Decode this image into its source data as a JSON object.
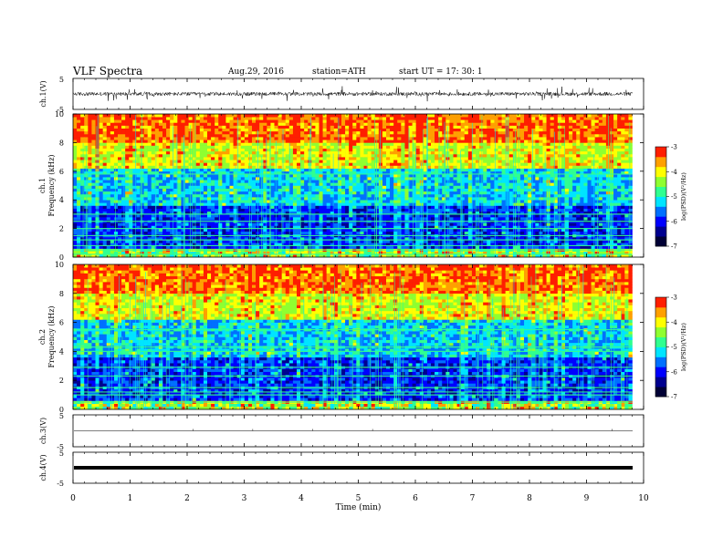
{
  "header": {
    "title": "VLF  Spectra",
    "date": "Aug.29, 2016",
    "station": "station=ATH",
    "start_ut": "start  UT  =    17: 30: 1"
  },
  "chart_data": [
    {
      "type": "line",
      "panel": "ch1-waveform",
      "ylabel": "ch.1(V)",
      "ylim": [
        -5,
        5
      ],
      "yticks": [
        "5",
        "-5"
      ],
      "x_range_min": [
        0,
        9.8
      ],
      "baseline_v": 0,
      "noise_amplitude_v": 1.2
    },
    {
      "type": "heatmap",
      "panel": "ch1-spectrogram",
      "ylabel_channel": "ch.1",
      "ylabel": "Frequency  (kHz)",
      "ylim": [
        0,
        10
      ],
      "yticks": [
        "0",
        "2",
        "4",
        "6",
        "8",
        "10"
      ],
      "colorbar": {
        "label": "log(PSD)(V²/Hz)",
        "ticks": [
          "-3",
          "-4",
          "-5",
          "-6",
          "-7"
        ],
        "range": [
          -7,
          -3
        ]
      },
      "x_range_min": [
        0,
        9.8
      ],
      "persistent_lines_khz": [
        5.8,
        3.0,
        2.5,
        2.0,
        1.5,
        1.2,
        0.8,
        0.5,
        0.2
      ]
    },
    {
      "type": "heatmap",
      "panel": "ch2-spectrogram",
      "ylabel_channel": "ch.2",
      "ylabel": "Frequency  (kHz)",
      "ylim": [
        0,
        10
      ],
      "yticks": [
        "0",
        "2",
        "4",
        "6",
        "8",
        "10"
      ],
      "colorbar": {
        "label": "log(PSD)(V²/Hz)",
        "ticks": [
          "-3",
          "-4",
          "-5",
          "-6",
          "-7"
        ],
        "range": [
          -7,
          -3
        ]
      },
      "x_range_min": [
        0,
        9.8
      ],
      "persistent_lines_khz": [
        5.5,
        4.3,
        4.0,
        2.9,
        2.3,
        1.5,
        1.2,
        1.0,
        0.5
      ]
    },
    {
      "type": "line",
      "panel": "ch3-waveform",
      "ylabel": "ch.3(V)",
      "ylim": [
        -5,
        5
      ],
      "yticks": [
        "5",
        "-5"
      ],
      "baseline_v": 0
    },
    {
      "type": "line",
      "panel": "ch4-waveform",
      "ylabel": "ch.4(V)",
      "ylim": [
        -5,
        5
      ],
      "yticks": [
        "5",
        "-5"
      ],
      "baseline_v": 0
    }
  ],
  "xaxis": {
    "label": "Time  (min)",
    "ticks": [
      "0",
      "1",
      "2",
      "3",
      "4",
      "5",
      "6",
      "7",
      "8",
      "9",
      "10"
    ],
    "range": [
      0,
      10
    ]
  },
  "colors": {
    "colormap": [
      "#000035",
      "#00008f",
      "#0000ff",
      "#0070ff",
      "#00e5ff",
      "#30ff90",
      "#8fff30",
      "#ffff00",
      "#ffa000",
      "#ff1e00",
      "#ffffff"
    ]
  }
}
